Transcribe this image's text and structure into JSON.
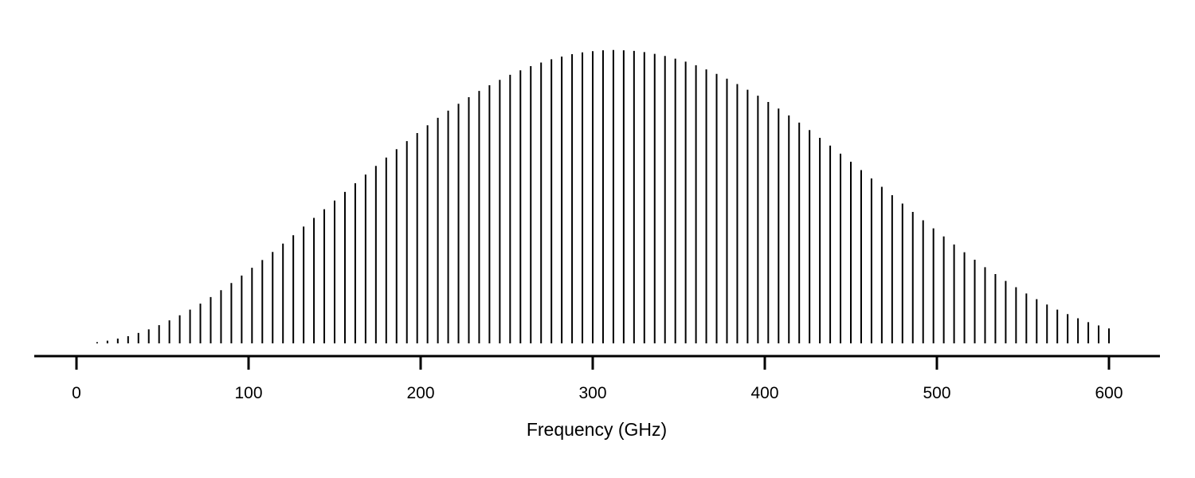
{
  "colors": {
    "background": "#ffffff",
    "lines": "#000000"
  },
  "chart_data": {
    "type": "line",
    "style": "stem / impulse lines",
    "title": "",
    "xlabel": "Frequency (GHz)",
    "ylabel": "",
    "x_ticks": [
      "0",
      "100",
      "200",
      "300",
      "400",
      "500",
      "600"
    ],
    "xlim": [
      -24,
      630
    ],
    "ylim": [
      0,
      1.05
    ],
    "grid": false,
    "y_axis_visible": false,
    "series": [
      {
        "x": [
          12,
          18,
          24,
          30,
          36,
          42,
          48,
          54,
          60,
          66,
          72,
          78,
          84,
          90,
          96,
          102,
          108,
          114,
          120,
          126,
          132,
          138,
          144,
          150,
          156,
          162,
          168,
          174,
          180,
          186,
          192,
          198,
          204,
          210,
          216,
          222,
          228,
          234,
          240,
          246,
          252,
          258,
          264,
          270,
          276,
          282,
          288,
          294,
          300,
          306,
          312,
          318,
          324,
          330,
          336,
          342,
          348,
          354,
          360,
          366,
          372,
          378,
          384,
          390,
          396,
          402,
          408,
          414,
          420,
          426,
          432,
          438,
          444,
          450,
          456,
          462,
          468,
          474,
          480,
          486,
          492,
          498,
          504,
          510,
          516,
          522,
          528,
          534,
          540,
          546,
          552,
          558,
          564,
          570,
          576,
          582,
          588,
          594,
          600
        ],
        "values": [
          0.004,
          0.009,
          0.016,
          0.024,
          0.035,
          0.047,
          0.061,
          0.077,
          0.094,
          0.113,
          0.133,
          0.155,
          0.178,
          0.202,
          0.227,
          0.253,
          0.279,
          0.306,
          0.334,
          0.362,
          0.391,
          0.42,
          0.449,
          0.478,
          0.507,
          0.536,
          0.565,
          0.594,
          0.622,
          0.65,
          0.677,
          0.704,
          0.73,
          0.755,
          0.779,
          0.802,
          0.824,
          0.845,
          0.864,
          0.882,
          0.899,
          0.914,
          0.928,
          0.94,
          0.951,
          0.96,
          0.968,
          0.974,
          0.978,
          0.981,
          0.982,
          0.981,
          0.979,
          0.975,
          0.969,
          0.962,
          0.953,
          0.943,
          0.931,
          0.917,
          0.902,
          0.886,
          0.868,
          0.849,
          0.829,
          0.808,
          0.786,
          0.763,
          0.739,
          0.714,
          0.688,
          0.662,
          0.635,
          0.608,
          0.58,
          0.552,
          0.524,
          0.496,
          0.468,
          0.44,
          0.412,
          0.385,
          0.358,
          0.331,
          0.305,
          0.28,
          0.255,
          0.232,
          0.209,
          0.188,
          0.167,
          0.148,
          0.13,
          0.113,
          0.098,
          0.084,
          0.071,
          0.06,
          0.05
        ]
      }
    ]
  }
}
